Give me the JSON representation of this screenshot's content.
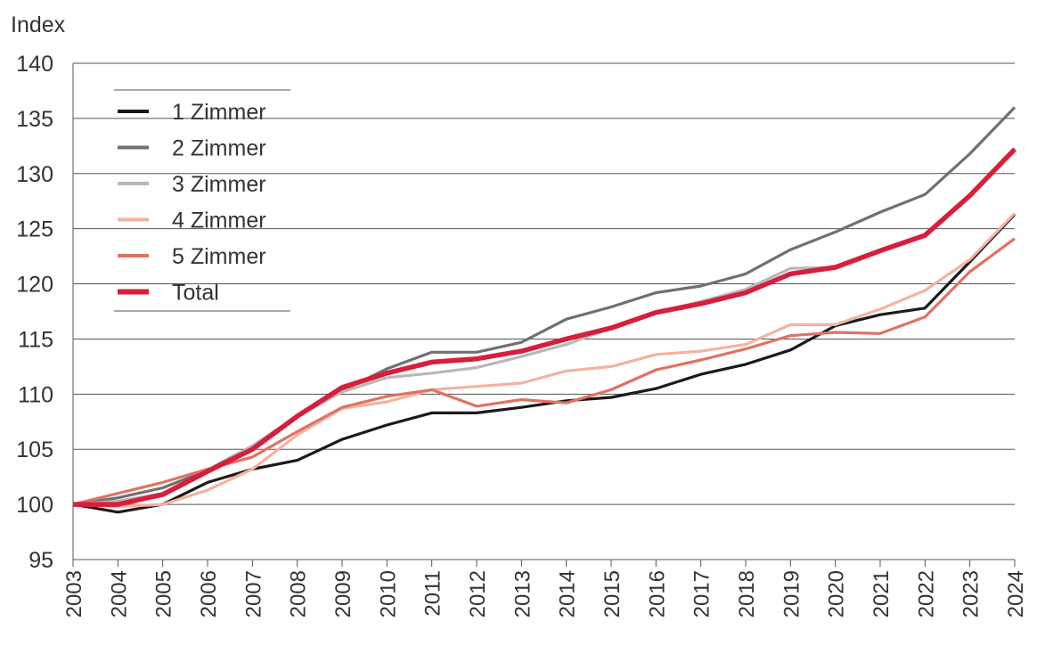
{
  "chart_data": {
    "type": "line",
    "title": "",
    "ylabel": "Index",
    "xlabel": "",
    "ylim": [
      95,
      140
    ],
    "yticks": [
      95,
      100,
      105,
      110,
      115,
      120,
      125,
      130,
      135,
      140
    ],
    "grid": "horizontal",
    "legend_position": "top-left",
    "x": [
      "2003",
      "2004",
      "2005",
      "2006",
      "2007",
      "2008",
      "2009",
      "2010",
      "2011",
      "2012",
      "2013",
      "2014",
      "2015",
      "2016",
      "2017",
      "2018",
      "2019",
      "2020",
      "2021",
      "2022",
      "2023",
      "2024"
    ],
    "series": [
      {
        "name": "1 Zimmer",
        "color": "#1a1a1a",
        "values": [
          100,
          99.3,
          100,
          102,
          103.2,
          104,
          105.9,
          107.2,
          108.3,
          108.3,
          108.8,
          109.4,
          109.7,
          110.5,
          111.8,
          112.7,
          114,
          116.2,
          117.2,
          117.8,
          122,
          126.3
        ]
      },
      {
        "name": "2 Zimmer",
        "color": "#707070",
        "values": [
          100,
          100.6,
          101.5,
          103.1,
          105.3,
          108,
          110.3,
          112.3,
          113.8,
          113.8,
          114.7,
          116.8,
          117.9,
          119.2,
          119.8,
          120.9,
          123.1,
          124.7,
          126.5,
          128.1,
          131.8,
          136
        ]
      },
      {
        "name": "3 Zimmer",
        "color": "#b8b8b8",
        "values": [
          100,
          100.3,
          101,
          103,
          105.3,
          108,
          110.2,
          111.5,
          111.9,
          112.4,
          113.4,
          114.5,
          116,
          117.4,
          118.4,
          119.5,
          121.4,
          121.5,
          123,
          124.4,
          128,
          132.3
        ]
      },
      {
        "name": "4 Zimmer",
        "color": "#f2b3a0",
        "values": [
          100,
          99.8,
          100,
          101.3,
          103.2,
          106.3,
          108.7,
          109.3,
          110.4,
          110.7,
          111,
          112.1,
          112.5,
          113.6,
          113.9,
          114.5,
          116.3,
          116.3,
          117.7,
          119.4,
          122.2,
          126.4
        ]
      },
      {
        "name": "5 Zimmer",
        "color": "#e07262",
        "values": [
          100,
          101,
          102,
          103.2,
          104.3,
          106.6,
          108.8,
          109.8,
          110.4,
          108.9,
          109.5,
          109.2,
          110.4,
          112.2,
          113.1,
          114.1,
          115.3,
          115.6,
          115.5,
          117,
          121.1,
          124.1
        ]
      },
      {
        "name": "Total",
        "color": "#d81e3a",
        "values": [
          100,
          100,
          100.9,
          103,
          105,
          108,
          110.6,
          111.9,
          112.9,
          113.2,
          113.9,
          115,
          116,
          117.4,
          118.2,
          119.2,
          120.9,
          121.5,
          123,
          124.4,
          128,
          132.2
        ]
      }
    ]
  }
}
